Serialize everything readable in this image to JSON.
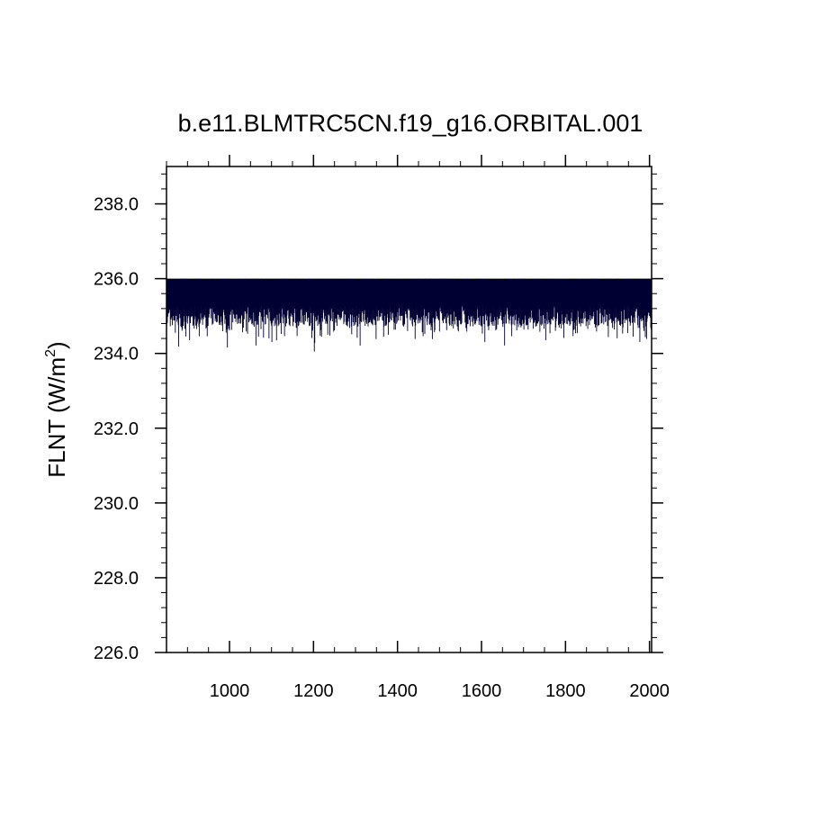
{
  "chart_data": {
    "type": "line",
    "title": "b.e11.BLMTRC5CN.f19_g16.ORBITAL.001",
    "ylabel": {
      "text": "FLNT (W/m",
      "sup": "2",
      "close": ")"
    },
    "xlabel": "",
    "xlim": [
      850,
      2005
    ],
    "ylim": [
      226.0,
      239.0
    ],
    "x_ticks": [
      1000,
      1200,
      1400,
      1600,
      1800,
      2000
    ],
    "x_tick_labels": [
      "1000",
      "1200",
      "1400",
      "1600",
      "1800",
      "2000"
    ],
    "x_minor_step": 50,
    "y_ticks": [
      226.0,
      228.0,
      230.0,
      232.0,
      234.0,
      236.0,
      238.0
    ],
    "y_tick_labels": [
      "226.0",
      "228.0",
      "230.0",
      "232.0",
      "234.0",
      "236.0",
      "238.0"
    ],
    "y_minor_step": 0.4,
    "grid": false,
    "series": [
      {
        "color": "#000033",
        "x_start": 850,
        "x_end": 2005,
        "upper": 236.0,
        "typical_low": 235.0,
        "min": 234.05,
        "min_at": 1202
      }
    ]
  }
}
